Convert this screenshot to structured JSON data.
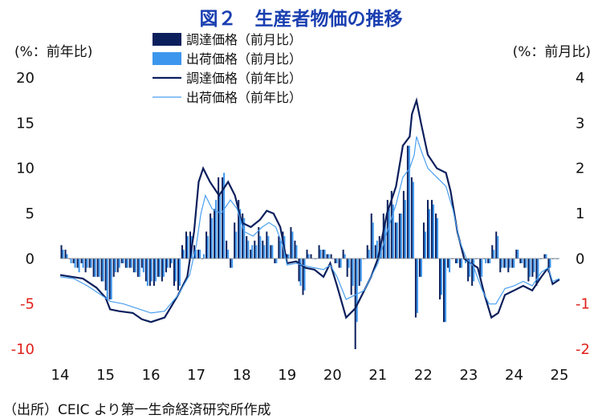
{
  "title": "図２　生産者物価の推移",
  "source": "（出所）CEIC より第一生命経済研究所作成",
  "colors": {
    "procure_bar": "#0b1f5c",
    "ship_bar": "#3c96ee",
    "procure_line": "#0b1f5c",
    "ship_line": "#4a9ff0",
    "negative_tick": "#e0201a"
  },
  "chart_data": {
    "type": "bar+line",
    "y_left_label": "(%：前年比)",
    "y_right_label": "(%：前月比)",
    "y_left_lim": [
      -10,
      20
    ],
    "y_left_ticks": [
      "20",
      "15",
      "10",
      "5",
      "0",
      "-5",
      "-10"
    ],
    "y_right_lim": [
      -2,
      4
    ],
    "y_right_ticks": [
      "4",
      "3",
      "2",
      "1",
      "0",
      "-1",
      "-2"
    ],
    "x_lim": [
      2014,
      2025
    ],
    "x_ticks": [
      "14",
      "15",
      "16",
      "17",
      "18",
      "19",
      "20",
      "21",
      "22",
      "23",
      "24",
      "25"
    ],
    "legend": [
      "調達価格（前月比）",
      "出荷価格（前月比）",
      "調達価格（前年比）",
      "出荷価格（前年比）"
    ],
    "legend_position": "top-left",
    "series_lines": [
      {
        "name": "調達価格（前年比）",
        "axis": "left",
        "points": [
          [
            2014.0,
            -1.8
          ],
          [
            2014.5,
            -2.2
          ],
          [
            2014.8,
            -3.2
          ],
          [
            2015.0,
            -4.3
          ],
          [
            2015.1,
            -5.6
          ],
          [
            2015.3,
            -5.8
          ],
          [
            2015.6,
            -6.0
          ],
          [
            2015.8,
            -6.7
          ],
          [
            2016.0,
            -7.0
          ],
          [
            2016.3,
            -6.5
          ],
          [
            2016.6,
            -4.0
          ],
          [
            2016.8,
            -2.0
          ],
          [
            2016.95,
            3.0
          ],
          [
            2017.05,
            8.5
          ],
          [
            2017.15,
            10.0
          ],
          [
            2017.3,
            8.5
          ],
          [
            2017.5,
            7.0
          ],
          [
            2017.7,
            8.5
          ],
          [
            2017.85,
            7.0
          ],
          [
            2018.0,
            4.0
          ],
          [
            2018.2,
            3.5
          ],
          [
            2018.4,
            4.3
          ],
          [
            2018.55,
            5.3
          ],
          [
            2018.7,
            5.0
          ],
          [
            2018.85,
            3.5
          ],
          [
            2019.0,
            -0.5
          ],
          [
            2019.2,
            -0.3
          ],
          [
            2019.4,
            -1.0
          ],
          [
            2019.6,
            -1.2
          ],
          [
            2019.8,
            -2.0
          ],
          [
            2019.95,
            -0.5
          ],
          [
            2020.1,
            -3.0
          ],
          [
            2020.3,
            -6.5
          ],
          [
            2020.5,
            -5.5
          ],
          [
            2020.7,
            -3.5
          ],
          [
            2020.85,
            -2.0
          ],
          [
            2021.0,
            0.0
          ],
          [
            2021.2,
            5.0
          ],
          [
            2021.4,
            8.0
          ],
          [
            2021.55,
            12.5
          ],
          [
            2021.7,
            13.5
          ],
          [
            2021.75,
            16.0
          ],
          [
            2021.85,
            17.5
          ],
          [
            2021.95,
            15.0
          ],
          [
            2022.1,
            11.5
          ],
          [
            2022.3,
            10.0
          ],
          [
            2022.5,
            9.5
          ],
          [
            2022.6,
            7.5
          ],
          [
            2022.75,
            3.0
          ],
          [
            2022.9,
            0.0
          ],
          [
            2023.05,
            -0.5
          ],
          [
            2023.2,
            -1.0
          ],
          [
            2023.35,
            -4.0
          ],
          [
            2023.5,
            -6.5
          ],
          [
            2023.65,
            -6.0
          ],
          [
            2023.8,
            -4.0
          ],
          [
            2024.0,
            -3.5
          ],
          [
            2024.2,
            -3.0
          ],
          [
            2024.4,
            -3.5
          ],
          [
            2024.6,
            -2.0
          ],
          [
            2024.75,
            -1.0
          ],
          [
            2024.85,
            -2.8
          ],
          [
            2025.0,
            -2.3
          ]
        ]
      },
      {
        "name": "出荷価格（前年比）",
        "axis": "left",
        "points": [
          [
            2014.0,
            -2.0
          ],
          [
            2014.3,
            -2.2
          ],
          [
            2014.6,
            -3.0
          ],
          [
            2014.9,
            -4.0
          ],
          [
            2015.1,
            -4.7
          ],
          [
            2015.4,
            -5.0
          ],
          [
            2015.7,
            -5.5
          ],
          [
            2016.0,
            -6.0
          ],
          [
            2016.3,
            -5.8
          ],
          [
            2016.6,
            -4.0
          ],
          [
            2016.85,
            -1.8
          ],
          [
            2017.0,
            1.5
          ],
          [
            2017.1,
            5.0
          ],
          [
            2017.2,
            7.0
          ],
          [
            2017.35,
            5.5
          ],
          [
            2017.55,
            5.0
          ],
          [
            2017.75,
            6.5
          ],
          [
            2017.9,
            5.5
          ],
          [
            2018.05,
            3.0
          ],
          [
            2018.25,
            2.5
          ],
          [
            2018.45,
            3.5
          ],
          [
            2018.6,
            4.0
          ],
          [
            2018.75,
            3.5
          ],
          [
            2018.9,
            1.5
          ],
          [
            2019.0,
            -0.7
          ],
          [
            2019.2,
            -0.5
          ],
          [
            2019.4,
            -0.8
          ],
          [
            2019.6,
            -1.0
          ],
          [
            2019.8,
            -1.2
          ],
          [
            2019.95,
            -0.7
          ],
          [
            2020.1,
            -2.0
          ],
          [
            2020.3,
            -4.5
          ],
          [
            2020.5,
            -4.0
          ],
          [
            2020.7,
            -3.5
          ],
          [
            2020.85,
            -2.0
          ],
          [
            2021.0,
            -0.5
          ],
          [
            2021.2,
            3.0
          ],
          [
            2021.4,
            6.0
          ],
          [
            2021.55,
            9.0
          ],
          [
            2021.7,
            10.0
          ],
          [
            2021.8,
            11.5
          ],
          [
            2021.85,
            13.5
          ],
          [
            2021.95,
            12.0
          ],
          [
            2022.1,
            10.0
          ],
          [
            2022.3,
            9.0
          ],
          [
            2022.5,
            8.0
          ],
          [
            2022.65,
            5.5
          ],
          [
            2022.8,
            2.0
          ],
          [
            2022.95,
            0.0
          ],
          [
            2023.1,
            -0.8
          ],
          [
            2023.3,
            -3.5
          ],
          [
            2023.45,
            -5.0
          ],
          [
            2023.6,
            -5.0
          ],
          [
            2023.8,
            -3.3
          ],
          [
            2024.0,
            -3.0
          ],
          [
            2024.2,
            -2.5
          ],
          [
            2024.4,
            -3.0
          ],
          [
            2024.6,
            -1.5
          ],
          [
            2024.75,
            -1.0
          ],
          [
            2024.85,
            -2.5
          ],
          [
            2025.0,
            -2.2
          ]
        ]
      }
    ],
    "series_bars": [
      {
        "name": "調達価格（前月比）",
        "axis": "right",
        "values": [
          0.3,
          0.2,
          0.0,
          -0.1,
          -0.2,
          -0.1,
          -0.3,
          -0.2,
          -0.4,
          -0.4,
          -0.5,
          -0.7,
          -0.9,
          -0.4,
          -0.3,
          -0.1,
          -0.2,
          -0.2,
          -0.3,
          -0.4,
          -0.2,
          -0.5,
          -0.6,
          -0.6,
          -0.4,
          -0.5,
          -0.3,
          -0.2,
          -0.6,
          -0.7,
          0.3,
          0.6,
          0.6,
          0.3,
          0.2,
          0.0,
          0.6,
          1.0,
          1.1,
          1.8,
          1.8,
          0.4,
          -0.2,
          0.8,
          1.3,
          1.0,
          0.5,
          0.2,
          0.4,
          0.7,
          0.4,
          0.6,
          0.3,
          -0.1,
          0.5,
          0.6,
          0.1,
          0.7,
          0.4,
          -0.5,
          -0.8,
          0.2,
          0.1,
          0.0,
          0.3,
          0.2,
          0.1,
          0.1,
          -0.1,
          -0.2,
          0.2,
          -0.4,
          -0.8,
          -2.0,
          -0.6,
          0.0,
          0.3,
          1.0,
          0.3,
          0.5,
          1.0,
          1.3,
          1.5,
          0.8,
          1.0,
          1.5,
          2.5,
          1.8,
          -1.3,
          -0.4,
          0.8,
          1.3,
          1.3,
          1.0,
          -0.9,
          -1.4,
          -0.2,
          0.0,
          -0.1,
          -0.2,
          0.0,
          -0.5,
          -0.6,
          0.0,
          -0.4,
          0.0,
          -0.1,
          0.3,
          0.6,
          -0.3,
          -0.2,
          -0.3,
          -0.2,
          0.2,
          -0.1,
          -0.2,
          -0.5,
          -0.4,
          -0.6,
          0.0,
          0.1,
          -0.3,
          0.0,
          0.0
        ]
      },
      {
        "name": "出荷価格（前月比）",
        "axis": "right",
        "values": [
          0.2,
          0.1,
          -0.1,
          -0.2,
          -0.3,
          -0.2,
          -0.2,
          -0.2,
          -0.4,
          -0.4,
          -0.5,
          -0.9,
          -0.9,
          -0.3,
          -0.2,
          -0.1,
          -0.2,
          -0.2,
          -0.3,
          -0.4,
          -0.3,
          -0.6,
          -0.5,
          -0.5,
          -0.4,
          -0.4,
          -0.2,
          -0.1,
          -0.5,
          -0.6,
          0.2,
          0.5,
          0.5,
          0.2,
          0.2,
          0.1,
          0.5,
          0.9,
          1.3,
          1.4,
          1.9,
          0.2,
          -0.2,
          0.6,
          1.1,
          0.9,
          0.4,
          0.3,
          0.3,
          0.5,
          0.3,
          0.5,
          0.3,
          -0.1,
          0.4,
          0.5,
          0.1,
          0.6,
          0.3,
          -0.6,
          -0.7,
          0.1,
          0.0,
          0.0,
          0.2,
          0.2,
          0.1,
          0.0,
          -0.1,
          -0.2,
          0.1,
          -0.2,
          -0.6,
          -1.4,
          -0.5,
          0.0,
          0.2,
          0.8,
          0.4,
          0.4,
          0.8,
          1.1,
          1.2,
          0.8,
          1.0,
          1.3,
          2.5,
          1.7,
          -1.2,
          -0.4,
          0.6,
          1.1,
          1.2,
          0.9,
          -0.8,
          -1.4,
          -0.3,
          0.0,
          -0.1,
          -0.2,
          -0.1,
          -0.4,
          -0.5,
          0.0,
          -0.4,
          -0.1,
          -0.1,
          0.2,
          0.5,
          -0.2,
          -0.2,
          -0.2,
          -0.2,
          0.2,
          -0.1,
          -0.2,
          -0.4,
          -0.3,
          -0.5,
          0.0,
          0.1,
          -0.2,
          0.0,
          0.0
        ]
      }
    ]
  }
}
